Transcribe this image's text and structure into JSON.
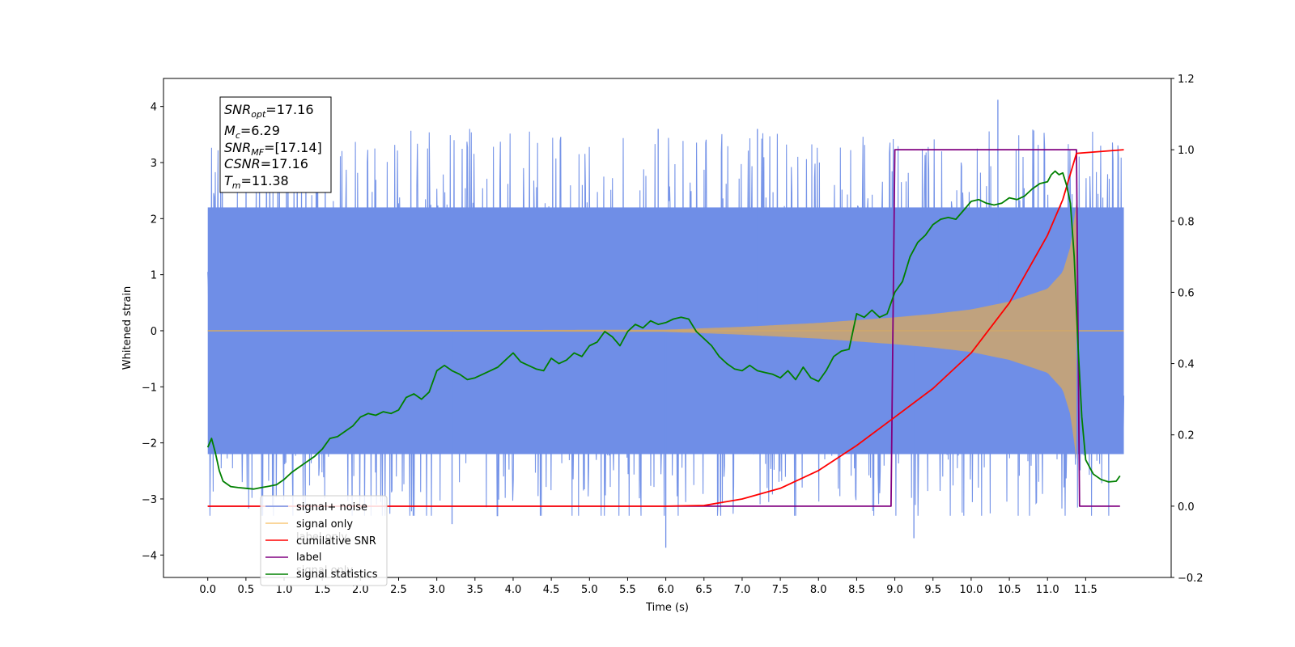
{
  "chart_data": {
    "type": "line",
    "xlabel": "Time (s)",
    "ylabel": "Whitened strain",
    "xlim": [
      -0.58,
      12.62
    ],
    "ylim": [
      -4.4,
      4.5
    ],
    "y2lim": [
      -0.2,
      1.2
    ],
    "x_ticks": [
      "0.0",
      "0.5",
      "1.0",
      "1.5",
      "2.0",
      "2.5",
      "3.0",
      "3.5",
      "4.0",
      "4.5",
      "5.0",
      "5.5",
      "6.0",
      "6.5",
      "7.0",
      "7.5",
      "8.0",
      "8.5",
      "9.0",
      "9.5",
      "10.0",
      "10.5",
      "11.0",
      "11.5"
    ],
    "y_ticks": [
      "4",
      "3",
      "2",
      "1",
      "0",
      "−1",
      "−2",
      "−3",
      "−4"
    ],
    "y2_ticks": [
      "1.2",
      "1.0",
      "0.8",
      "0.6",
      "0.4",
      "0.2",
      "0.0",
      "−0.2"
    ],
    "info_box": {
      "snr_opt": {
        "sym": "SNR",
        "sub": "opt",
        "val": "=17.16"
      },
      "mc": {
        "sym": "M",
        "sub": "c",
        "val": "=6.29"
      },
      "snr_mf": {
        "sym": "SNR",
        "sub": "MF",
        "val": "=[17.14]"
      },
      "csnr": {
        "sym": "CSNR",
        "sub": "",
        "val": "=17.16"
      },
      "tm": {
        "sym": "T",
        "sub": "m",
        "val": "=11.38"
      }
    },
    "legend": {
      "placement": "lower-left",
      "items": [
        "signal+ noise",
        "signal only",
        "cumilative SNR",
        "label",
        "signal statistics"
      ],
      "ghost": [
        "label only",
        "signal only"
      ]
    },
    "series": [
      {
        "name": "signal+ noise",
        "color": "#6f8ee7",
        "axis": "left",
        "t_start": 0.0,
        "t_end": 12.0,
        "envelope": 2.2,
        "typical_min": -3.3,
        "typical_max": 3.6,
        "extremes": [
          -3.87,
          4.12
        ]
      },
      {
        "name": "signal only",
        "color": "#f5b041",
        "axis": "left",
        "t_start": 0.0,
        "t_end": 11.38,
        "envelope_t": [
          0,
          6.0,
          7.0,
          8.0,
          8.5,
          9.0,
          9.5,
          10.0,
          10.5,
          11.0,
          11.2,
          11.3,
          11.38
        ],
        "envelope_a": [
          0.0,
          0.02,
          0.07,
          0.14,
          0.19,
          0.24,
          0.3,
          0.38,
          0.52,
          0.75,
          1.05,
          1.5,
          2.3
        ]
      },
      {
        "name": "cumilative SNR",
        "color": "#ff0000",
        "axis": "right",
        "x": [
          0,
          6.0,
          6.5,
          7.0,
          7.5,
          8.0,
          8.5,
          9.0,
          9.5,
          10.0,
          10.5,
          11.0,
          11.2,
          11.38,
          12.0
        ],
        "y": [
          0,
          0,
          0.002,
          0.02,
          0.05,
          0.1,
          0.17,
          0.25,
          0.33,
          0.43,
          0.57,
          0.76,
          0.86,
          0.99,
          1.0
        ]
      },
      {
        "name": "label",
        "color": "#800080",
        "axis": "right",
        "x": [
          0,
          8.95,
          9.0,
          11.38,
          11.42,
          11.95
        ],
        "y": [
          0,
          0,
          1,
          1,
          0,
          0
        ]
      },
      {
        "name": "signal statistics",
        "color": "#008000",
        "axis": "right",
        "x": [
          0,
          0.05,
          0.1,
          0.15,
          0.2,
          0.3,
          0.4,
          0.5,
          0.6,
          0.7,
          0.8,
          0.9,
          1.0,
          1.1,
          1.2,
          1.3,
          1.4,
          1.5,
          1.6,
          1.7,
          1.8,
          1.9,
          2.0,
          2.1,
          2.2,
          2.3,
          2.4,
          2.5,
          2.6,
          2.7,
          2.8,
          2.9,
          3.0,
          3.1,
          3.2,
          3.3,
          3.4,
          3.5,
          3.6,
          3.7,
          3.8,
          3.9,
          4.0,
          4.1,
          4.2,
          4.3,
          4.4,
          4.5,
          4.6,
          4.7,
          4.8,
          4.9,
          5.0,
          5.1,
          5.2,
          5.3,
          5.4,
          5.5,
          5.6,
          5.7,
          5.8,
          5.9,
          6.0,
          6.1,
          6.2,
          6.3,
          6.4,
          6.5,
          6.6,
          6.7,
          6.8,
          6.9,
          7.0,
          7.1,
          7.2,
          7.3,
          7.4,
          7.5,
          7.6,
          7.7,
          7.8,
          7.9,
          8.0,
          8.1,
          8.2,
          8.3,
          8.4,
          8.5,
          8.6,
          8.7,
          8.8,
          8.9,
          9.0,
          9.1,
          9.2,
          9.3,
          9.4,
          9.5,
          9.6,
          9.7,
          9.8,
          9.9,
          10.0,
          10.1,
          10.2,
          10.3,
          10.4,
          10.5,
          10.6,
          10.7,
          10.8,
          10.9,
          11.0,
          11.05,
          11.1,
          11.15,
          11.2,
          11.25,
          11.3,
          11.35,
          11.4,
          11.45,
          11.5,
          11.6,
          11.7,
          11.8,
          11.9,
          11.95
        ],
        "y": [
          0.165,
          0.19,
          0.15,
          0.1,
          0.07,
          0.055,
          0.052,
          0.05,
          0.048,
          0.052,
          0.056,
          0.06,
          0.075,
          0.095,
          0.11,
          0.125,
          0.14,
          0.16,
          0.19,
          0.195,
          0.21,
          0.225,
          0.25,
          0.26,
          0.255,
          0.265,
          0.26,
          0.27,
          0.305,
          0.315,
          0.3,
          0.32,
          0.38,
          0.395,
          0.38,
          0.37,
          0.355,
          0.36,
          0.37,
          0.38,
          0.39,
          0.41,
          0.43,
          0.405,
          0.395,
          0.385,
          0.38,
          0.415,
          0.4,
          0.41,
          0.43,
          0.42,
          0.45,
          0.46,
          0.49,
          0.475,
          0.45,
          0.49,
          0.51,
          0.5,
          0.52,
          0.51,
          0.515,
          0.525,
          0.53,
          0.525,
          0.49,
          0.47,
          0.45,
          0.42,
          0.4,
          0.385,
          0.38,
          0.395,
          0.38,
          0.375,
          0.37,
          0.36,
          0.38,
          0.355,
          0.39,
          0.36,
          0.35,
          0.38,
          0.42,
          0.435,
          0.44,
          0.54,
          0.53,
          0.55,
          0.53,
          0.54,
          0.6,
          0.63,
          0.7,
          0.74,
          0.76,
          0.79,
          0.805,
          0.81,
          0.805,
          0.83,
          0.855,
          0.86,
          0.85,
          0.845,
          0.85,
          0.865,
          0.86,
          0.87,
          0.89,
          0.905,
          0.91,
          0.93,
          0.94,
          0.93,
          0.935,
          0.9,
          0.85,
          0.7,
          0.45,
          0.25,
          0.13,
          0.09,
          0.075,
          0.068,
          0.07,
          0.085
        ]
      }
    ]
  }
}
